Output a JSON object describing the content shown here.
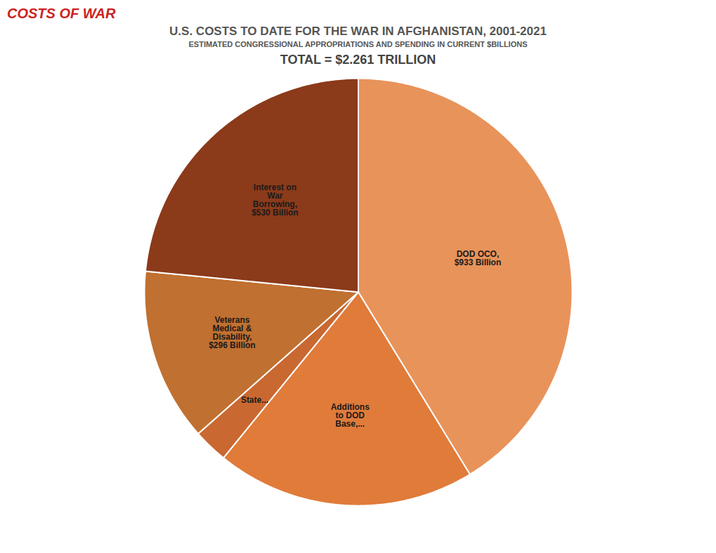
{
  "chart_data": {
    "type": "pie",
    "title": "U.S. COSTS TO DATE FOR THE WAR IN AFGHANISTAN, 2001-2021",
    "subtitle": "ESTIMATED CONGRESSIONAL APPROPRIATIONS AND SPENDING IN CURRENT $BILLIONS",
    "annotations": [
      "COSTS OF WAR",
      "TOTAL = $2.261 TRILLION"
    ],
    "categories": [
      "DOD OCO,\n$933 Billion",
      "Additions\nto DOD\nBase,...",
      "State...",
      "Veterans\nMedical &\nDisability,\n$296 Billion",
      "Interest on\nWar\nBorrowing,\n$530 Billion"
    ],
    "values": [
      933,
      443,
      59,
      296,
      530
    ],
    "colors": [
      "#E8935A",
      "#E07B3A",
      "#C96830",
      "#C07030",
      "#8B3A1A"
    ]
  }
}
